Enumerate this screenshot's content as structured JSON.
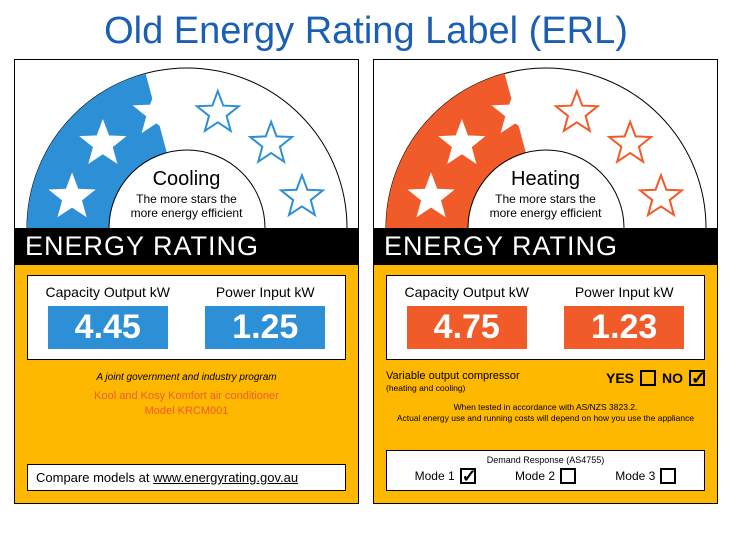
{
  "title": "Old Energy Rating Label (ERL)",
  "colors": {
    "title": "#1a5fb4",
    "cool_fill": "#2d8fd5",
    "heat_fill": "#f15a29",
    "yellow": "#ffb800",
    "black": "#000000",
    "white": "#ffffff"
  },
  "arc": {
    "total_stars": 6,
    "star_outline_color": "#000000"
  },
  "cooling": {
    "mode_label": "Cooling",
    "tagline_l1": "The more stars the",
    "tagline_l2": "more energy efficient",
    "bar_label": "ENERGY RATING",
    "capacity_label": "Capacity Output kW",
    "capacity_value": "4.45",
    "power_label": "Power Input kW",
    "power_value": "1.25",
    "stars_filled": 2.5,
    "joint_text": "A joint government and industry program",
    "product_l1": "Kool and Kosy Komfort air conditioner",
    "product_l2": "Model KRCM001",
    "compare_prefix": "Compare models at  ",
    "compare_url": "www.energyrating.gov.au"
  },
  "heating": {
    "mode_label": "Heating",
    "tagline_l1": "The more stars the",
    "tagline_l2": "more energy efficient",
    "bar_label": "ENERGY RATING",
    "capacity_label": "Capacity Output kW",
    "capacity_value": "4.75",
    "power_label": "Power Input kW",
    "power_value": "1.23",
    "stars_filled": 2.5,
    "voc_label": "Variable output compressor",
    "voc_sub": "(heating and cooling)",
    "yes_label": "YES",
    "no_label": "NO",
    "voc_yes": false,
    "voc_no": true,
    "tested_l1": "When tested in accordance with AS/NZS 3823.2.",
    "tested_l2": "Actual energy use and running costs will depend on how you use the appliance",
    "dr_title": "Demand Response (AS4755)",
    "mode1_label": "Mode 1",
    "mode2_label": "Mode 2",
    "mode3_label": "Mode 3",
    "mode1": true,
    "mode2": false,
    "mode3": false
  }
}
